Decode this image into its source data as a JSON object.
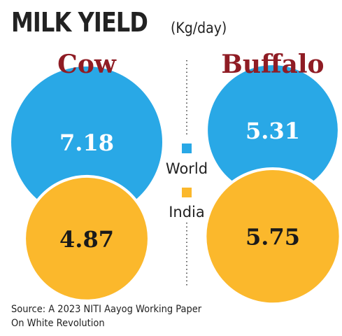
{
  "title": "MILK YIELD",
  "unit": "(Kg/day)",
  "colors": {
    "world": "#29a8e6",
    "india": "#fbb82c",
    "group_label": "#8f1c24",
    "value_world": "#ffffff",
    "value_india": "#1a1a1a"
  },
  "chart_data": {
    "type": "bubble",
    "title": "MILK YIELD",
    "unit": "(Kg/day)",
    "categories": [
      "Cow",
      "Buffalo"
    ],
    "series": [
      {
        "name": "World",
        "values": [
          7.18,
          5.31
        ]
      },
      {
        "name": "India",
        "values": [
          4.87,
          5.75
        ]
      }
    ],
    "legend": "center"
  },
  "source": {
    "line1": "Source: A 2023 NITI Aayog Working Paper",
    "line2": "On White Revolution"
  }
}
